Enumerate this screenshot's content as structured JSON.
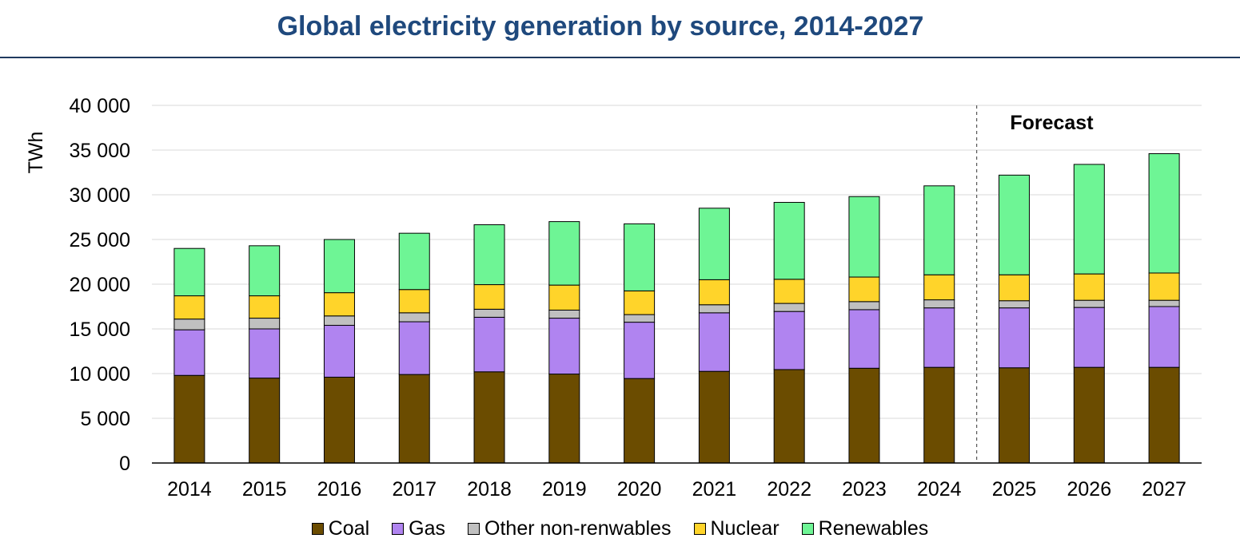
{
  "title": "Global electricity generation by source, 2014-2027",
  "colors": {
    "title": "#1f497d",
    "rule": "#1f3a5f",
    "grid": "#d9d9d9",
    "axis": "#000000"
  },
  "chart_data": {
    "type": "bar",
    "stacked": true,
    "title": "Global electricity generation by source, 2014-2027",
    "ylabel": "TWh",
    "xlabel": "",
    "ylim": [
      0,
      40000
    ],
    "yticks": [
      0,
      5000,
      10000,
      15000,
      20000,
      25000,
      30000,
      35000,
      40000
    ],
    "ytick_labels": [
      "0",
      "5 000",
      "10 000",
      "15 000",
      "20 000",
      "25 000",
      "30 000",
      "35 000",
      "40 000"
    ],
    "grid": true,
    "legend_position": "bottom",
    "annotation": {
      "text": "Forecast",
      "divider_after": "2024"
    },
    "categories": [
      "2014",
      "2015",
      "2016",
      "2017",
      "2018",
      "2019",
      "2020",
      "2021",
      "2022",
      "2023",
      "2024",
      "2025",
      "2026",
      "2027"
    ],
    "series": [
      {
        "name": "Coal",
        "color": "#6b4c00",
        "values": [
          9800,
          9500,
          9600,
          9900,
          10200,
          9950,
          9450,
          10250,
          10450,
          10600,
          10700,
          10650,
          10700,
          10700
        ]
      },
      {
        "name": "Gas",
        "color": "#b084f0",
        "values": [
          5100,
          5500,
          5800,
          5900,
          6100,
          6250,
          6300,
          6550,
          6500,
          6550,
          6650,
          6700,
          6700,
          6800
        ]
      },
      {
        "name": "Other non-renwables",
        "color": "#c0c0c0",
        "values": [
          1200,
          1200,
          1050,
          1000,
          900,
          900,
          850,
          900,
          900,
          900,
          900,
          800,
          800,
          700
        ]
      },
      {
        "name": "Nuclear",
        "color": "#ffd42a",
        "values": [
          2600,
          2500,
          2600,
          2600,
          2750,
          2800,
          2650,
          2800,
          2700,
          2750,
          2800,
          2900,
          2950,
          3050
        ]
      },
      {
        "name": "Renewables",
        "color": "#6ef595",
        "values": [
          5300,
          5600,
          5950,
          6300,
          6700,
          7100,
          7500,
          8000,
          8600,
          9000,
          9950,
          11150,
          12250,
          13350
        ]
      }
    ]
  }
}
